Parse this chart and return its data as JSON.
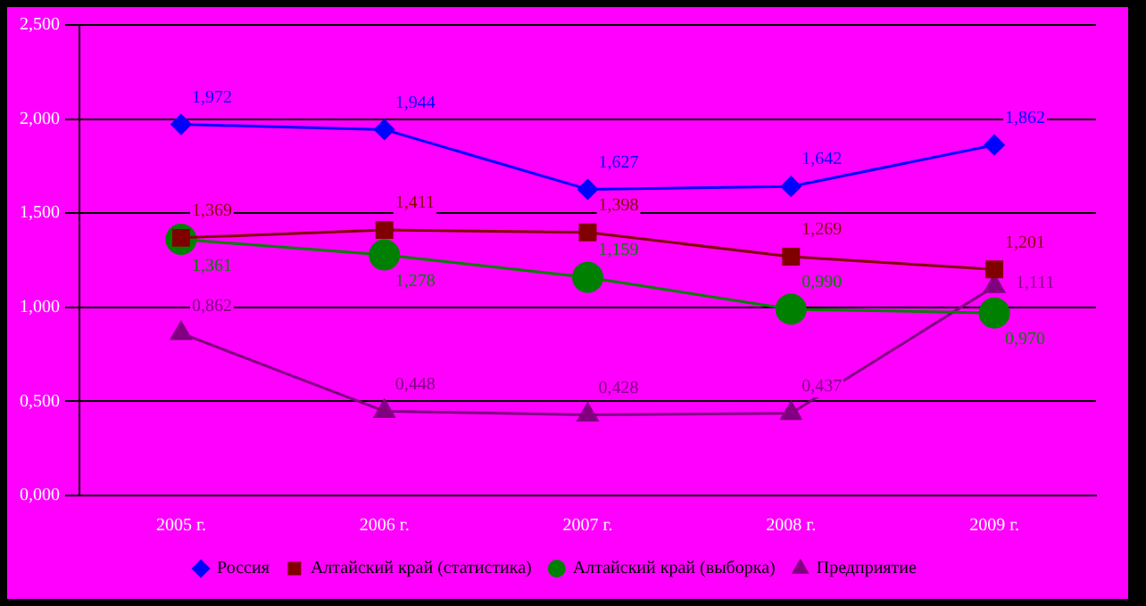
{
  "chart_data": {
    "type": "line",
    "categories": [
      "2005 г.",
      "2006 г.",
      "2007 г.",
      "2008 г.",
      "2009 г."
    ],
    "ylim": [
      0,
      2.5
    ],
    "yticks": [
      {
        "value": 0,
        "label": "0,000"
      },
      {
        "value": 0.5,
        "label": "0,500"
      },
      {
        "value": 1,
        "label": "1,000"
      },
      {
        "value": 1.5,
        "label": "1,500"
      },
      {
        "value": 2,
        "label": "2,000"
      },
      {
        "value": 2.5,
        "label": "2,500"
      }
    ],
    "grid": "y",
    "legend": "bottom",
    "series": [
      {
        "name": "Россия",
        "color": "#0000ff",
        "marker": "diamond",
        "values": [
          1.972,
          1.944,
          1.627,
          1.642,
          1.862
        ],
        "value_labels": [
          "1,972",
          "1,944",
          "1,627",
          "1,642",
          "1,862"
        ]
      },
      {
        "name": "Алтайский край (статистика)",
        "color": "#800000",
        "marker": "square",
        "values": [
          1.369,
          1.411,
          1.398,
          1.269,
          1.201
        ],
        "value_labels": [
          "1,369",
          "1,411",
          "1,398",
          "1,269",
          "1,201"
        ]
      },
      {
        "name": "Алтайский край (выборка)",
        "color": "#008000",
        "marker": "circle",
        "values": [
          1.361,
          1.278,
          1.159,
          0.99,
          0.97
        ],
        "value_labels": [
          "1,361",
          "1,278",
          "1,159",
          "0,990",
          "0,970"
        ]
      },
      {
        "name": "Предприятие",
        "color": "#800080",
        "marker": "triangle",
        "values": [
          0.862,
          0.448,
          0.428,
          0.437,
          1.111
        ],
        "value_labels": [
          "0,862",
          "0,448",
          "0,428",
          "0,437",
          "1,111"
        ]
      }
    ]
  }
}
